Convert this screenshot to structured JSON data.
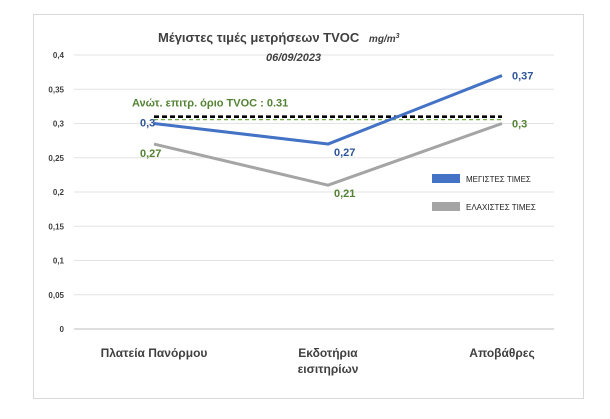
{
  "chart_data": {
    "type": "line",
    "title": "Μέγιστες τιμές μετρήσεων   TVOC",
    "title_unit": "mg/m",
    "title_unit_sup": "3",
    "subtitle": "06/09/2023",
    "categories": [
      "Πλατεία Πανόρμου",
      "Εκδοτήρια εισιτηρίων",
      "Αποβάθρες"
    ],
    "category_lines": [
      [
        "Πλατεία Πανόρμου"
      ],
      [
        "Εκδοτήρια",
        "εισιτηρίων"
      ],
      [
        "Αποβάθρες"
      ]
    ],
    "series": [
      {
        "name": "ΜΕΓΙΣΤΕΣ ΤΙΜΕΣ",
        "values": [
          0.3,
          0.27,
          0.37
        ],
        "labels": [
          "0,3",
          "0,27",
          "0,37"
        ],
        "color": "#4472c4"
      },
      {
        "name": "ΕΛΑΧΙΣΤΕΣ ΤΙΜΕΣ",
        "values": [
          0.27,
          0.21,
          0.3
        ],
        "labels": [
          "0,27",
          "0,21",
          "0,3"
        ],
        "color": "#a5a5a5"
      }
    ],
    "data_label_colors": {
      "max": "#2f5597",
      "min": "#548235"
    },
    "limit": {
      "value": 0.31,
      "label_prefix": "Ανώτ. επιτρ. όριο",
      "label_bold": "TVOC : 0.31",
      "color": "#000000",
      "dash_color": "#70ad47",
      "label_color": "#548235"
    },
    "ylim": [
      0,
      0.4
    ],
    "yticks": [
      0,
      0.05,
      0.1,
      0.15,
      0.2,
      0.25,
      0.3,
      0.35,
      0.4
    ],
    "ytick_labels": [
      "0",
      "0,05",
      "0,1",
      "0,15",
      "0,2",
      "0,25",
      "0,3",
      "0,35",
      "0,4"
    ],
    "grid": true,
    "legend_position": "right"
  }
}
